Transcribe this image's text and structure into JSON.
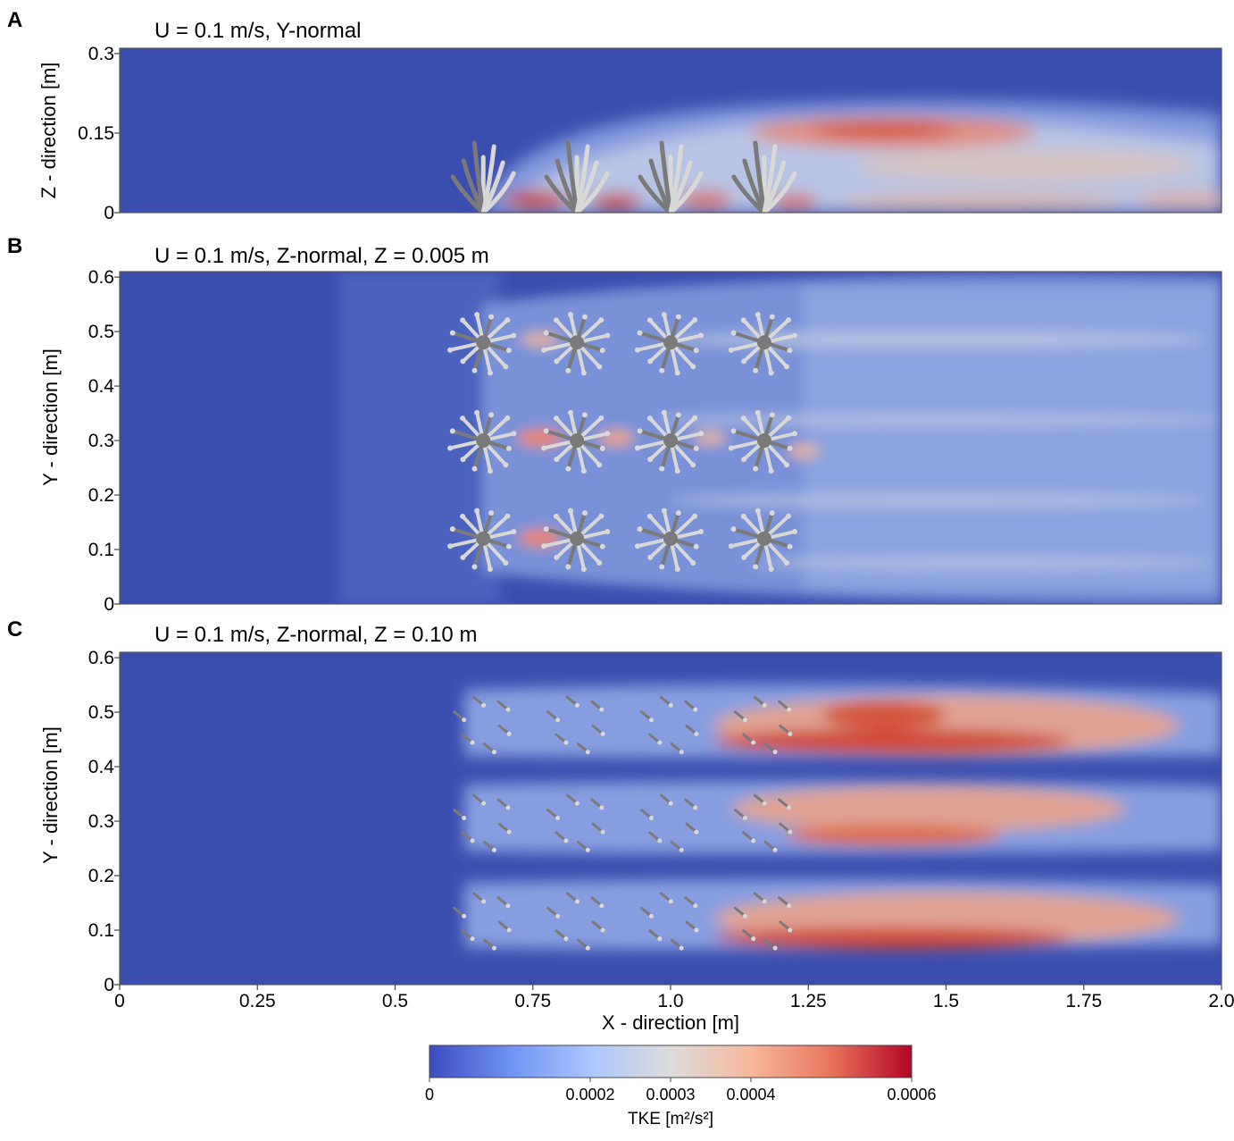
{
  "chart_data": [
    {
      "type": "heatmap",
      "panel_label": "A",
      "title": "U = 0.1 m/s, Y-normal",
      "xlabel": "",
      "ylabel": "Z - direction [m]",
      "xlim": [
        0,
        2.0
      ],
      "ylim": [
        0,
        0.31
      ],
      "xticks": [],
      "yticks": [
        {
          "value": 0,
          "label": "0"
        },
        {
          "value": 0.15,
          "label": "0.15"
        },
        {
          "value": 0.3,
          "label": "0.3"
        }
      ],
      "colorscale": "tke",
      "coral_x": [
        0.66,
        0.83,
        1.0,
        1.17
      ],
      "coral_rows_y": [],
      "view": "side",
      "grid": false
    },
    {
      "type": "heatmap",
      "panel_label": "B",
      "title": "U = 0.1 m/s, Z-normal, Z = 0.005 m",
      "xlabel": "",
      "ylabel": "Y - direction [m]",
      "xlim": [
        0,
        2.0
      ],
      "ylim": [
        0,
        0.61
      ],
      "xticks": [],
      "yticks": [
        {
          "value": 0,
          "label": "0"
        },
        {
          "value": 0.1,
          "label": "0.1"
        },
        {
          "value": 0.2,
          "label": "0.2"
        },
        {
          "value": 0.3,
          "label": "0.3"
        },
        {
          "value": 0.4,
          "label": "0.4"
        },
        {
          "value": 0.5,
          "label": "0.5"
        },
        {
          "value": 0.6,
          "label": "0.6"
        }
      ],
      "colorscale": "tke",
      "coral_x": [
        0.66,
        0.83,
        1.0,
        1.17
      ],
      "coral_rows_y": [
        0.12,
        0.3,
        0.48
      ],
      "view": "top",
      "grid": false
    },
    {
      "type": "heatmap",
      "panel_label": "C",
      "title": "U = 0.1 m/s, Z-normal, Z = 0.10 m",
      "xlabel": "X - direction [m]",
      "ylabel": "Y - direction [m]",
      "xlim": [
        0,
        2.0
      ],
      "ylim": [
        0,
        0.61
      ],
      "xticks": [
        {
          "value": 0,
          "label": "0"
        },
        {
          "value": 0.25,
          "label": "0.25"
        },
        {
          "value": 0.5,
          "label": "0.5"
        },
        {
          "value": 0.75,
          "label": "0.75"
        },
        {
          "value": 1.0,
          "label": "1.0"
        },
        {
          "value": 1.25,
          "label": "1.25"
        },
        {
          "value": 1.5,
          "label": "1.5"
        },
        {
          "value": 1.75,
          "label": "1.75"
        },
        {
          "value": 2.0,
          "label": "2.0"
        }
      ],
      "yticks": [
        {
          "value": 0,
          "label": "0"
        },
        {
          "value": 0.1,
          "label": "0.1"
        },
        {
          "value": 0.2,
          "label": "0.2"
        },
        {
          "value": 0.3,
          "label": "0.3"
        },
        {
          "value": 0.4,
          "label": "0.4"
        },
        {
          "value": 0.5,
          "label": "0.5"
        },
        {
          "value": 0.6,
          "label": "0.6"
        }
      ],
      "colorscale": "tke",
      "coral_x": [
        0.66,
        0.83,
        1.0,
        1.17
      ],
      "coral_rows_y": [
        0.12,
        0.3,
        0.48
      ],
      "view": "section",
      "grid": false
    }
  ],
  "colorbar": {
    "label": "TKE [m²/s²]",
    "range": [
      0,
      0.0006
    ],
    "ticks": [
      {
        "value": 0,
        "label": "0"
      },
      {
        "value": 0.0002,
        "label": "0.0002"
      },
      {
        "value": 0.0003,
        "label": "0.0003"
      },
      {
        "value": 0.0004,
        "label": "0.0004"
      },
      {
        "value": 0.0006,
        "label": "0.0006"
      }
    ],
    "colors": [
      "#3b4cc0",
      "#6f92f3",
      "#aac7fd",
      "#dddcdc",
      "#f7b89c",
      "#e7745b",
      "#b40426"
    ]
  },
  "colors": {
    "background": "#3a4eb0",
    "coral_light": "#d8d8d6",
    "coral_dark": "#7a7a7a"
  }
}
